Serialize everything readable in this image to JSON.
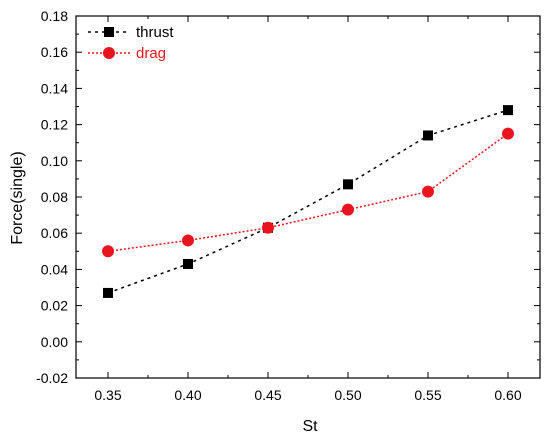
{
  "chart_data": {
    "type": "line",
    "xlabel": "St",
    "ylabel": "Force(single)",
    "xlim": [
      0.33,
      0.62
    ],
    "ylim": [
      -0.02,
      0.18
    ],
    "x": [
      0.35,
      0.4,
      0.45,
      0.5,
      0.55,
      0.6
    ],
    "x_tick_labels": [
      "0.35",
      "0.40",
      "0.45",
      "0.50",
      "0.55",
      "0.60"
    ],
    "y_ticks": [
      -0.02,
      0.0,
      0.02,
      0.04,
      0.06,
      0.08,
      0.1,
      0.12,
      0.14,
      0.16,
      0.18
    ],
    "y_tick_labels": [
      "-0.02",
      "0.00",
      "0.02",
      "0.04",
      "0.06",
      "0.08",
      "0.10",
      "0.12",
      "0.14",
      "0.16",
      "0.18"
    ],
    "grid": false,
    "legend_position": "top-left",
    "series": [
      {
        "name": "thrust",
        "color": "#000000",
        "marker": "square",
        "line_style": "dotted",
        "values": [
          0.027,
          0.043,
          0.063,
          0.087,
          0.114,
          0.128
        ]
      },
      {
        "name": "drag",
        "color": "#e8141e",
        "marker": "circle",
        "line_style": "dotted",
        "values": [
          0.05,
          0.056,
          0.063,
          0.073,
          0.083,
          0.115
        ]
      }
    ]
  }
}
